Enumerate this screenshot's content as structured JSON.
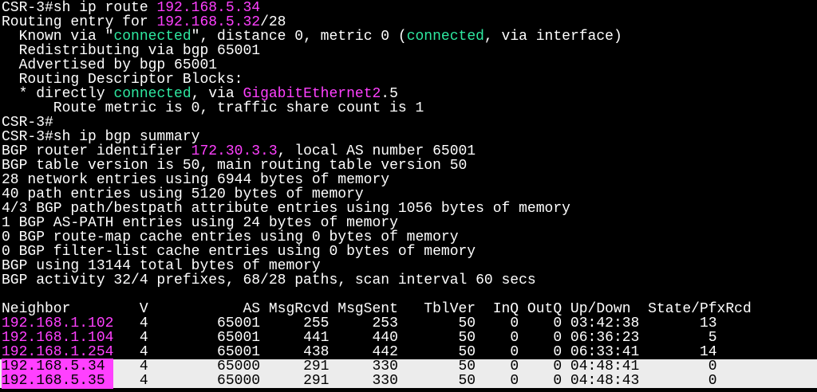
{
  "terminal": {
    "background": "#000000",
    "text_color": "#ffffff",
    "lines": [
      {
        "segments": [
          {
            "text": "CSR-3#sh ip route "
          },
          {
            "text": "192.168.5.34",
            "color": "#ff40ff"
          }
        ]
      },
      {
        "segments": [
          {
            "text": "Routing entry for "
          },
          {
            "text": "192.168.5.32",
            "color": "#ff40ff"
          },
          {
            "text": "/28"
          }
        ]
      },
      {
        "segments": [
          {
            "text": "  Known via \""
          },
          {
            "text": "connected",
            "color": "#2ee8a0"
          },
          {
            "text": "\", distance 0, metric 0 ("
          },
          {
            "text": "connected",
            "color": "#2ee8a0"
          },
          {
            "text": ", via interface)"
          }
        ]
      },
      {
        "segments": [
          {
            "text": "  Redistributing via bgp 65001"
          }
        ]
      },
      {
        "segments": [
          {
            "text": "  Advertised by bgp 65001"
          }
        ]
      },
      {
        "segments": [
          {
            "text": "  Routing Descriptor Blocks:"
          }
        ]
      },
      {
        "segments": [
          {
            "text": "  * directly "
          },
          {
            "text": "connected",
            "color": "#2ee8a0"
          },
          {
            "text": ", via "
          },
          {
            "text": "GigabitEthernet2",
            "color": "#ff40ff"
          },
          {
            "text": ".5"
          }
        ]
      },
      {
        "segments": [
          {
            "text": "      Route metric is 0, traffic share count is 1"
          }
        ]
      },
      {
        "segments": [
          {
            "text": "CSR-3#"
          }
        ]
      },
      {
        "segments": [
          {
            "text": "CSR-3#sh ip bgp summary"
          }
        ]
      },
      {
        "segments": [
          {
            "text": "BGP router identifier "
          },
          {
            "text": "172.30.3.3",
            "color": "#ff40ff"
          },
          {
            "text": ", local AS number 65001"
          }
        ]
      },
      {
        "segments": [
          {
            "text": "BGP table version is 50, main routing table version 50"
          }
        ]
      },
      {
        "segments": [
          {
            "text": "28 network entries using 6944 bytes of memory"
          }
        ]
      },
      {
        "segments": [
          {
            "text": "40 path entries using 5120 bytes of memory"
          }
        ]
      },
      {
        "segments": [
          {
            "text": "4/3 BGP path/bestpath attribute entries using 1056 bytes of memory"
          }
        ]
      },
      {
        "segments": [
          {
            "text": "1 BGP AS-PATH entries using 24 bytes of memory"
          }
        ]
      },
      {
        "segments": [
          {
            "text": "0 BGP route-map cache entries using 0 bytes of memory"
          }
        ]
      },
      {
        "segments": [
          {
            "text": "0 BGP filter-list cache entries using 0 bytes of memory"
          }
        ]
      },
      {
        "segments": [
          {
            "text": "BGP using 13144 total bytes of memory"
          }
        ]
      },
      {
        "segments": [
          {
            "text": "BGP activity 32/4 prefixes, 68/28 paths, scan interval 60 secs"
          }
        ]
      },
      {
        "segments": []
      },
      {
        "segments": [
          {
            "text": "Neighbor        V           AS MsgRcvd MsgSent   TblVer  InQ OutQ Up/Down  State/PfxRcd"
          }
        ]
      },
      {
        "segments": [
          {
            "text": "192.168.1.102",
            "color": "#ff40ff"
          },
          {
            "text": "   4        65001     255     253       50    0    0 03:42:38       13"
          }
        ]
      },
      {
        "segments": [
          {
            "text": "192.168.1.104",
            "color": "#ff40ff"
          },
          {
            "text": "   4        65001     441     440       50    0    0 06:36:23        5"
          }
        ]
      },
      {
        "segments": [
          {
            "text": "192.168.1.254",
            "color": "#ff40ff"
          },
          {
            "text": "   4        65001     438     442       50    0    0 06:33:41       14"
          }
        ]
      },
      {
        "highlight": "#ececec",
        "segments": [
          {
            "text": "192.168.5.34 ",
            "color": "#000000",
            "background": "#ff40ff"
          },
          {
            "text": "   4        65000     291     330       50    0    0 04:48:41        0",
            "color": "#000000"
          }
        ]
      },
      {
        "highlight": "#ececec",
        "segments": [
          {
            "text": "192.168.5.35 ",
            "color": "#000000",
            "background": "#ff40ff"
          },
          {
            "text": "   4        65000     291     330       50    0    0 04:48:43        0",
            "color": "#000000"
          }
        ]
      }
    ]
  }
}
